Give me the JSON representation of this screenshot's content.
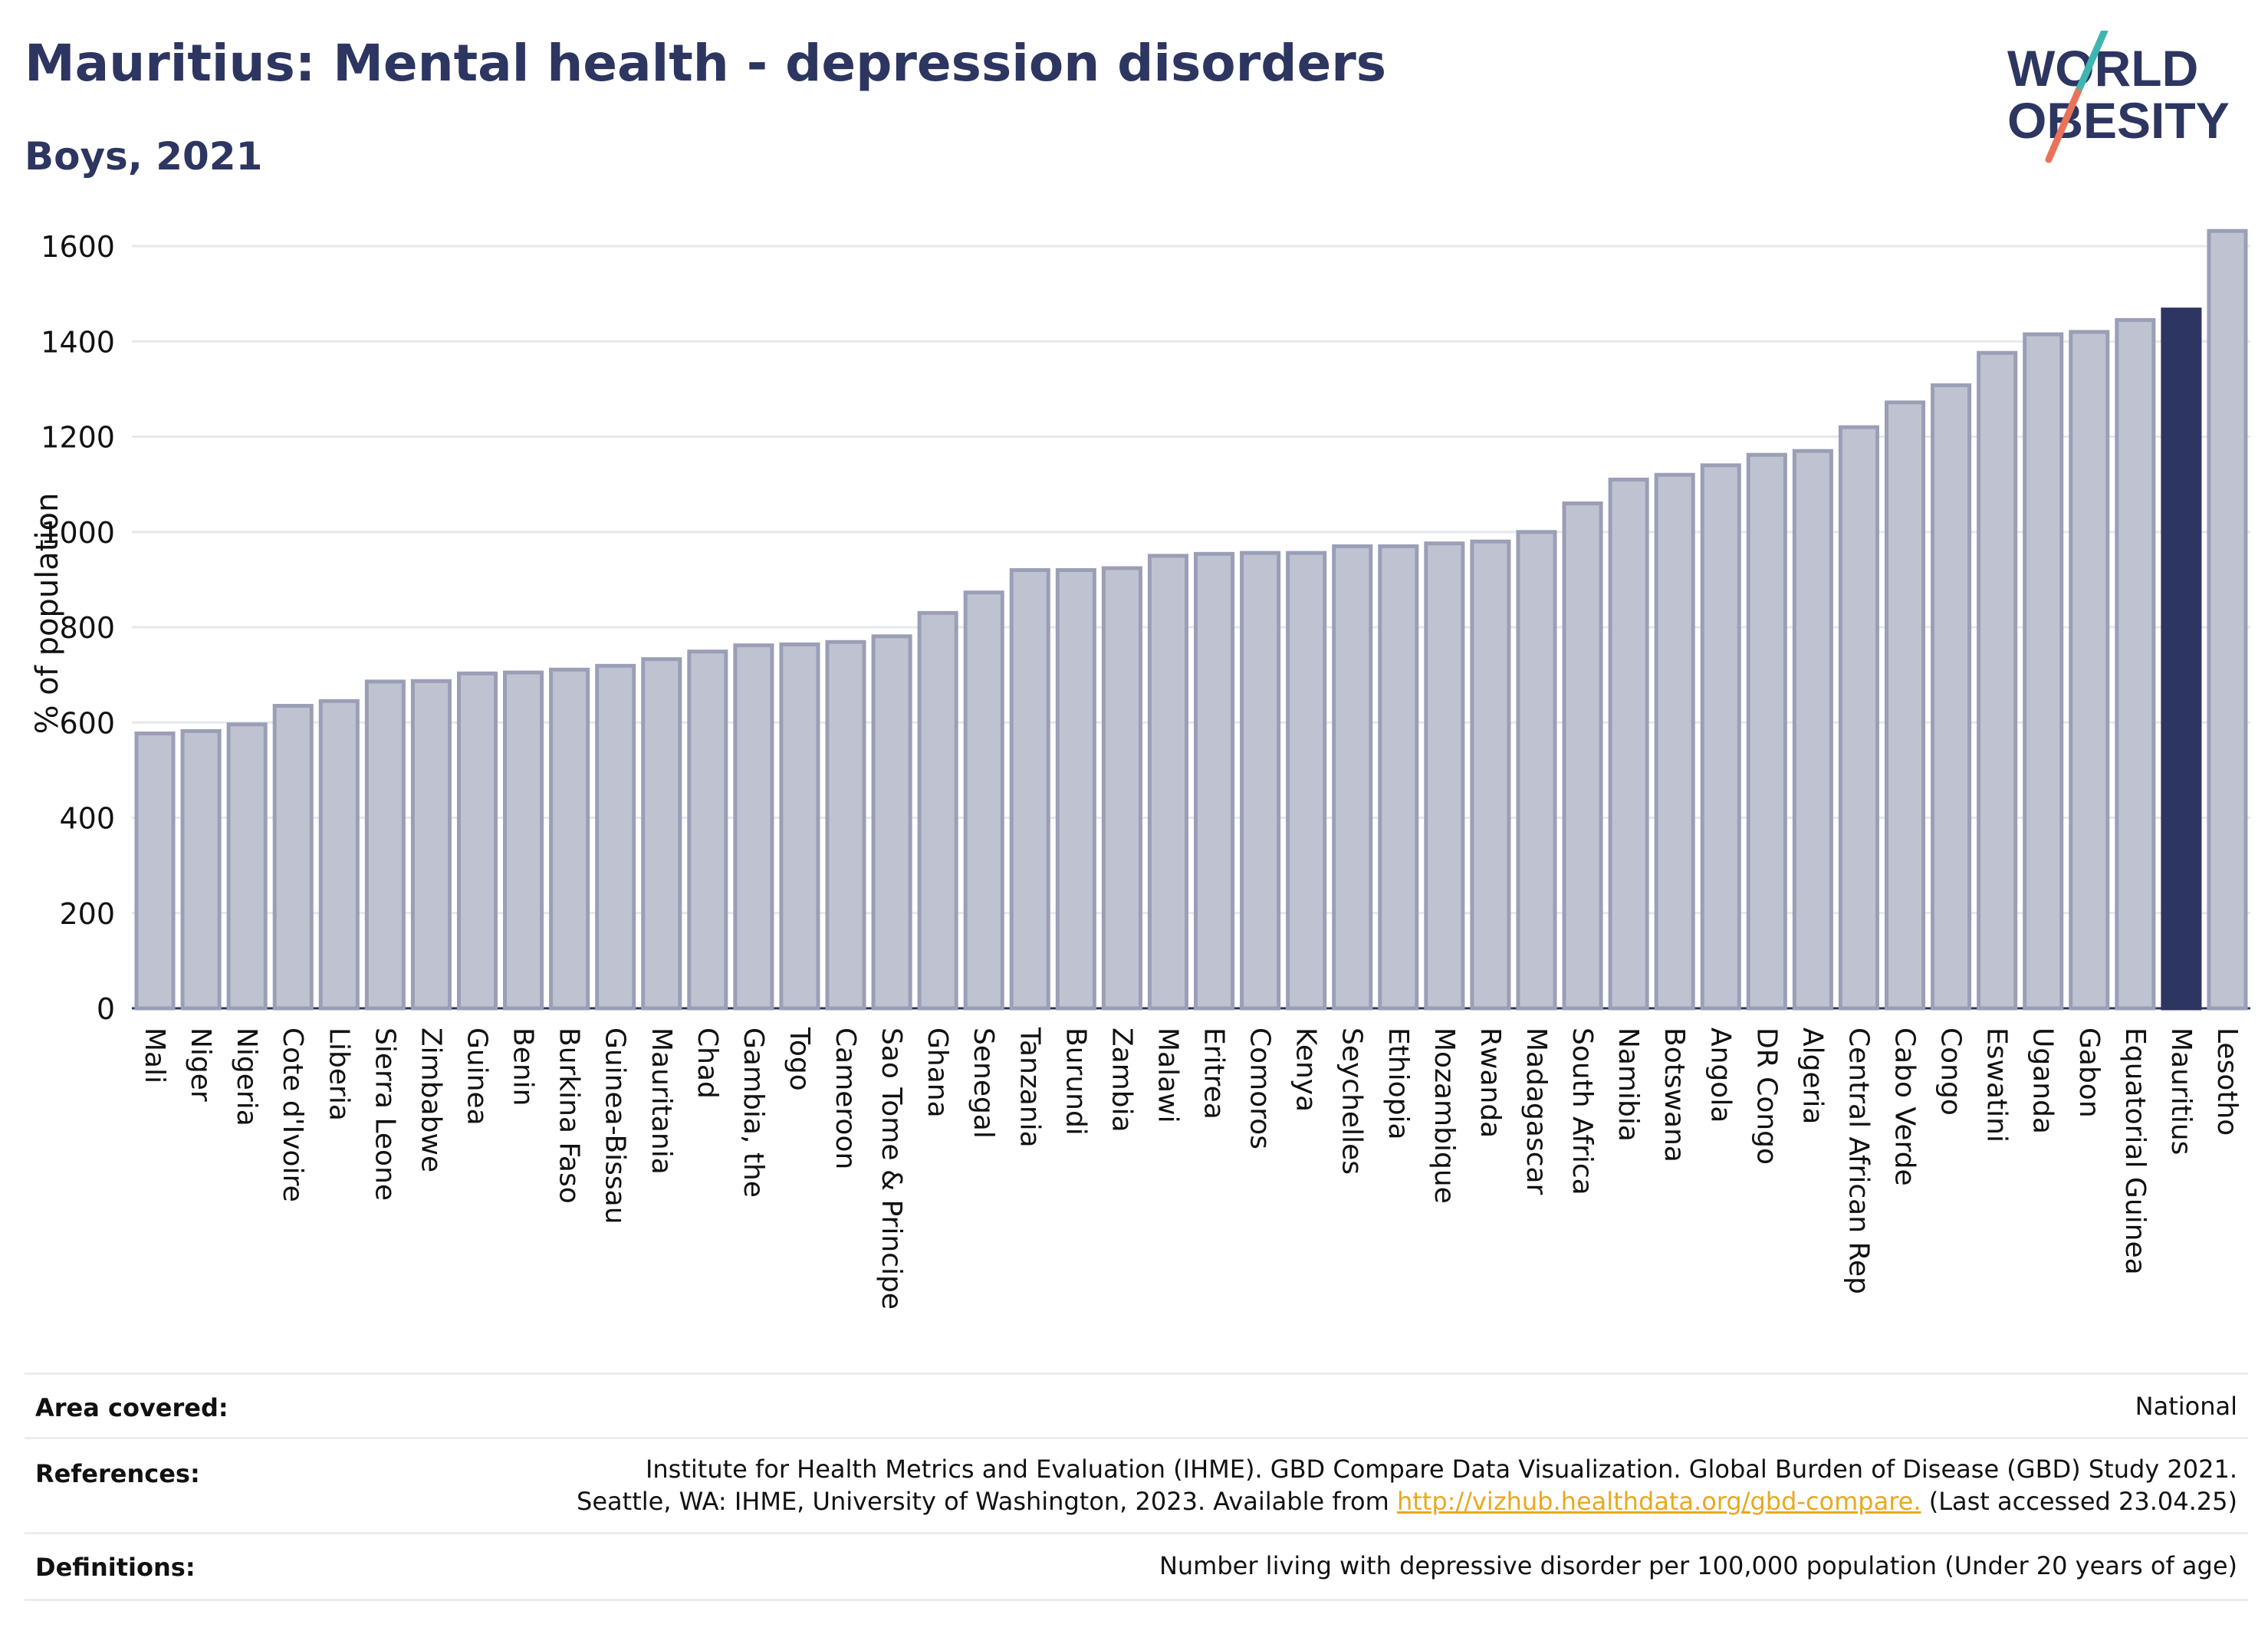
{
  "header": {
    "title": "Mauritius: Mental health - depression disorders",
    "subtitle": "Boys, 2021"
  },
  "logo": {
    "line1": "WORLD",
    "line2": "OBESITY",
    "accent_teal": "#3fb5b0",
    "accent_coral": "#e8735a"
  },
  "colors": {
    "bar": "#bfc3d1",
    "bar_stroke": "#9a9fb6",
    "highlight": "#2d3561",
    "grid": "#e6e8ee",
    "text": "#2d3561"
  },
  "chart_data": {
    "type": "bar",
    "ylabel": "% of population",
    "ylim": [
      0,
      1650
    ],
    "yticks": [
      0,
      200,
      400,
      600,
      800,
      1000,
      1200,
      1400,
      1600
    ],
    "highlight": "Mauritius",
    "categories": [
      "Mali",
      "Niger",
      "Nigeria",
      "Cote d'Ivoire",
      "Liberia",
      "Sierra Leone",
      "Zimbabwe",
      "Guinea",
      "Benin",
      "Burkina Faso",
      "Guinea-Bissau",
      "Mauritania",
      "Chad",
      "Gambia, the",
      "Togo",
      "Cameroon",
      "Sao Tome & Principe",
      "Ghana",
      "Senegal",
      "Tanzania",
      "Burundi",
      "Zambia",
      "Malawi",
      "Eritrea",
      "Comoros",
      "Kenya",
      "Seychelles",
      "Ethiopia",
      "Mozambique",
      "Rwanda",
      "Madagascar",
      "South Africa",
      "Namibia",
      "Botswana",
      "Angola",
      "DR Congo",
      "Algeria",
      "Central African Rep",
      "Cabo Verde",
      "Congo",
      "Eswatini",
      "Uganda",
      "Gabon",
      "Equatorial Guinea",
      "Mauritius",
      "Lesotho"
    ],
    "values": [
      577,
      582,
      596,
      635,
      645,
      686,
      687,
      703,
      705,
      711,
      719,
      733,
      749,
      762,
      764,
      769,
      781,
      830,
      873,
      920,
      920,
      924,
      950,
      954,
      956,
      956,
      970,
      970,
      976,
      980,
      1000,
      1060,
      1110,
      1120,
      1140,
      1162,
      1170,
      1220,
      1272,
      1308,
      1376,
      1415,
      1420,
      1445,
      1467,
      1632
    ]
  },
  "info": {
    "area_label": "Area covered:",
    "area_value": "National",
    "ref_label": "References:",
    "ref_line1": "Institute for Health Metrics and Evaluation (IHME). GBD Compare Data Visualization. Global Burden of Disease (GBD) Study 2021.",
    "ref_line2_pre": "Seattle, WA: IHME, University of Washington, 2023. Available from ",
    "ref_link": "http://vizhub.healthdata.org/gbd-compare.",
    "ref_line2_post": " (Last accessed 23.04.25)",
    "def_label": "Definitions:",
    "def_value": "Number living with depressive disorder per 100,000 population (Under 20 years of age)"
  }
}
